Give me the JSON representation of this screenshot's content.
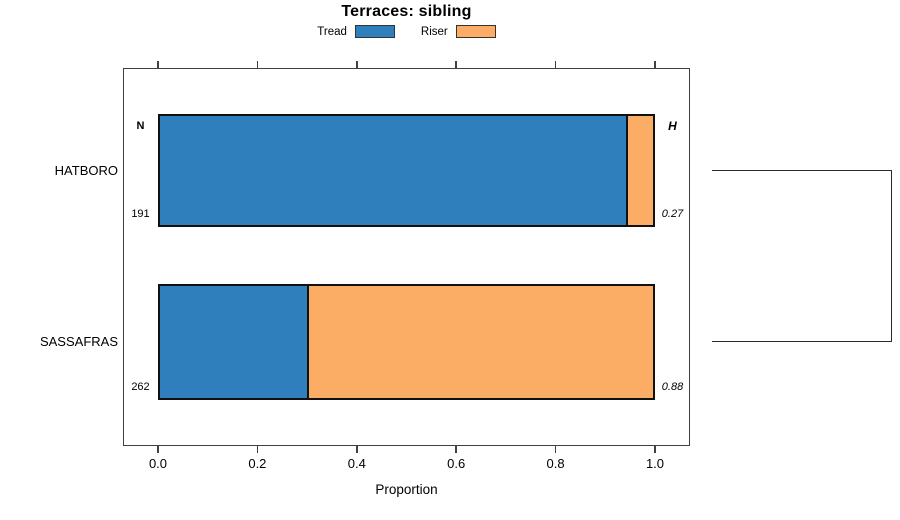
{
  "chart_data": {
    "type": "bar",
    "orientation": "horizontal",
    "stacked": true,
    "title": "Terraces: sibling",
    "xlabel": "Proportion",
    "xlim": [
      0,
      1
    ],
    "xticks": [
      "0.0",
      "0.2",
      "0.4",
      "0.6",
      "0.8",
      "1.0"
    ],
    "grid": false,
    "legend_position": "top-center",
    "categories": [
      "HATBORO",
      "SASSAFRAS"
    ],
    "series": [
      {
        "name": "Tread",
        "color": "#2E7FBB",
        "values": [
          0.95,
          0.3
        ]
      },
      {
        "name": "Riser",
        "color": "#FCAD65",
        "values": [
          0.05,
          0.7
        ]
      }
    ],
    "annotations": {
      "left_column_header": "N",
      "right_column_header": "H",
      "left_column_values": [
        "191",
        "262"
      ],
      "right_column_values": [
        "0.27",
        "0.88"
      ]
    },
    "right_bracket": {
      "shape": "square-bracket",
      "connects": [
        "HATBORO",
        "SASSAFRAS"
      ]
    }
  }
}
